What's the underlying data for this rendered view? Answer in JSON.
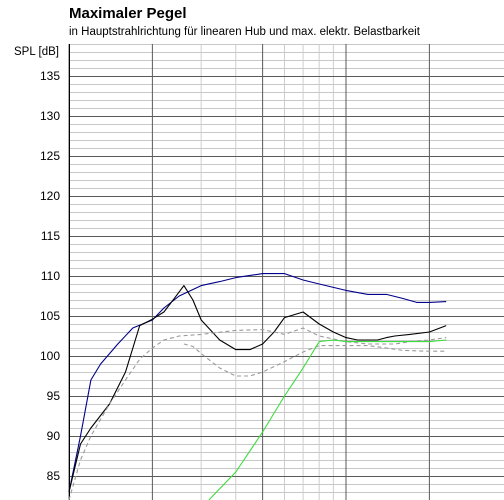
{
  "header": {
    "title": "Maximaler Pegel",
    "subtitle": "in Hauptstrahlrichtung für linearen Hub und max. elektr. Belastbarkeit"
  },
  "chart_data": {
    "type": "line",
    "title": "Maximaler Pegel",
    "subtitle": "in Hauptstrahlrichtung für linearen Hub und max. elektr. Belastbarkeit",
    "ylabel": "SPL [dB]",
    "xlabel": "",
    "x_scale": "log",
    "xlim": [
      10,
      230
    ],
    "ylim": [
      82,
      139
    ],
    "y_ticks": [
      85,
      90,
      95,
      100,
      105,
      110,
      115,
      120,
      125,
      130,
      135
    ],
    "grid": true,
    "series": [
      {
        "color": "#00008b",
        "style": "solid",
        "x": [
          10,
          11,
          12,
          13,
          15,
          17,
          20,
          22,
          25,
          30,
          35,
          40,
          50,
          60,
          70,
          80,
          100,
          120,
          140,
          160,
          180,
          200,
          230
        ],
        "y": [
          83,
          90,
          97,
          99,
          101.5,
          103.5,
          104.5,
          106,
          107.5,
          108.8,
          109.3,
          109.8,
          110.3,
          110.3,
          109.5,
          109,
          108.2,
          107.7,
          107.7,
          107.2,
          106.7,
          106.7,
          106.8
        ]
      },
      {
        "color": "#000000",
        "style": "solid",
        "x": [
          10,
          11,
          12,
          14,
          16,
          18,
          20,
          22,
          24,
          26,
          28,
          30,
          35,
          40,
          45,
          50,
          55,
          60,
          70,
          80,
          90,
          100,
          110,
          120,
          130,
          140,
          150,
          170,
          200,
          230
        ],
        "y": [
          83,
          89,
          91,
          94,
          98,
          103.8,
          104.6,
          105.5,
          107.2,
          108.8,
          107,
          104.5,
          102,
          100.8,
          100.8,
          101.5,
          103,
          104.8,
          105.5,
          104,
          103,
          102.3,
          102,
          102,
          102,
          102.3,
          102.5,
          102.7,
          103,
          103.8
        ]
      },
      {
        "color": "#9a9a9a",
        "style": "dashed",
        "x": [
          10,
          11,
          12,
          14,
          16,
          18,
          20,
          22,
          25,
          30,
          40,
          50,
          55,
          60,
          70,
          80,
          100,
          120,
          140,
          150,
          170,
          200,
          230
        ],
        "y": [
          82,
          87,
          90,
          94,
          97,
          99.6,
          101,
          102,
          102.5,
          102.7,
          103.2,
          103.3,
          103,
          102.7,
          103.5,
          102.5,
          101.8,
          101.5,
          101.5,
          101.5,
          101.8,
          102,
          102.3
        ]
      },
      {
        "color": "#9a9a9a",
        "style": "dashed",
        "x": [
          26,
          28,
          30,
          35,
          40,
          45,
          50,
          60,
          70,
          80,
          90,
          100,
          120,
          140,
          160,
          200,
          230
        ],
        "y": [
          101.5,
          101.2,
          100.3,
          98.5,
          97.5,
          97.5,
          98,
          99.3,
          100.5,
          101.3,
          101.3,
          101.3,
          101.3,
          101,
          100.7,
          100.6,
          100.6
        ]
      },
      {
        "color": "#3cdc3c",
        "style": "solid",
        "x": [
          32,
          40,
          50,
          60,
          70,
          80,
          90,
          100,
          120,
          140,
          160,
          200,
          230
        ],
        "y": [
          82,
          85.5,
          90.5,
          95,
          98.5,
          101.8,
          102,
          101.8,
          101.8,
          101.8,
          101.8,
          101.8,
          102
        ]
      }
    ]
  }
}
